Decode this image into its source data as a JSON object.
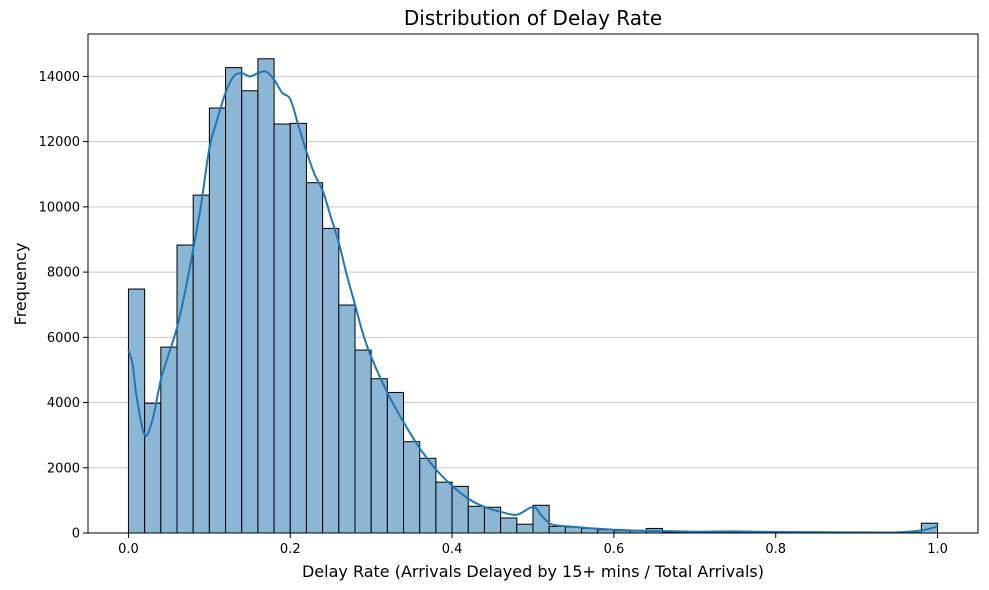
{
  "chart_data": {
    "type": "bar",
    "title": "Distribution of Delay Rate",
    "xlabel": "Delay Rate (Arrivals Delayed by 15+ mins / Total Arrivals)",
    "ylabel": "Frequency",
    "xlim": [
      -0.05,
      1.05
    ],
    "ylim": [
      0,
      15300
    ],
    "x_ticks": [
      0.0,
      0.2,
      0.4,
      0.6,
      0.8,
      1.0
    ],
    "x_tick_labels": [
      "0.0",
      "0.2",
      "0.4",
      "0.6",
      "0.8",
      "1.0"
    ],
    "y_ticks": [
      0,
      2000,
      4000,
      6000,
      8000,
      10000,
      12000,
      14000
    ],
    "y_tick_labels": [
      "0",
      "2000",
      "4000",
      "6000",
      "8000",
      "10000",
      "12000",
      "14000"
    ],
    "grid": "y-only",
    "bar_color": "#8bb6d6",
    "bar_edge_color": "#000000",
    "kde_color": "#1f77b4",
    "bins": {
      "start": 0.0,
      "width": 0.02,
      "values": [
        7480,
        3980,
        5700,
        8830,
        10360,
        13030,
        14270,
        13560,
        14540,
        12540,
        12560,
        10740,
        9340,
        6990,
        5610,
        4730,
        4310,
        2800,
        2290,
        1560,
        1430,
        820,
        790,
        460,
        270,
        850,
        200,
        180,
        140,
        100,
        70,
        60,
        140,
        30,
        20,
        25,
        20,
        15,
        15,
        10,
        10,
        10,
        10,
        10,
        10,
        10,
        10,
        10,
        10,
        300
      ]
    },
    "kde": {
      "x": [
        0.0,
        0.005,
        0.01,
        0.02,
        0.03,
        0.04,
        0.05,
        0.06,
        0.07,
        0.08,
        0.09,
        0.1,
        0.11,
        0.12,
        0.13,
        0.14,
        0.15,
        0.16,
        0.17,
        0.18,
        0.19,
        0.2,
        0.21,
        0.22,
        0.23,
        0.24,
        0.25,
        0.26,
        0.27,
        0.28,
        0.29,
        0.3,
        0.32,
        0.34,
        0.36,
        0.38,
        0.4,
        0.42,
        0.44,
        0.46,
        0.48,
        0.5,
        0.51,
        0.52,
        0.53,
        0.55,
        0.58,
        0.62,
        0.66,
        0.7,
        0.75,
        0.8,
        0.85,
        0.9,
        0.95,
        0.98,
        1.0
      ],
      "y": [
        5600,
        5200,
        4200,
        3000,
        3500,
        4700,
        5500,
        6300,
        7400,
        8700,
        10100,
        11800,
        12700,
        13500,
        14000,
        14100,
        14000,
        14100,
        14150,
        13900,
        13500,
        13300,
        12500,
        11700,
        11000,
        10500,
        9700,
        8900,
        7900,
        7000,
        6100,
        5400,
        4300,
        3400,
        2600,
        1950,
        1450,
        1050,
        800,
        650,
        560,
        800,
        550,
        300,
        230,
        190,
        130,
        80,
        60,
        40,
        50,
        30,
        25,
        20,
        20,
        80,
        200
      ]
    }
  }
}
